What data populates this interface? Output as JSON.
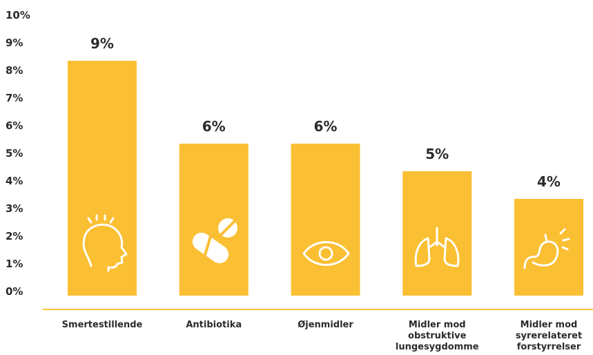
{
  "chart_data": {
    "type": "bar",
    "categories": [
      "Smertestillende",
      "Antibiotika",
      "Øjenmidler",
      "Midler mod\nobstruktive\nlungesygdomme",
      "Midler mod\nsyrerelateret\nforstyrrelser"
    ],
    "values": [
      8.5,
      5.5,
      5.5,
      4.5,
      3.5
    ],
    "value_labels": [
      "9%",
      "6%",
      "6%",
      "5%",
      "4%"
    ],
    "color": "#fbbf33",
    "ylim": [
      0,
      10
    ],
    "yticks": [
      {
        "value": 0,
        "label": "0%"
      },
      {
        "value": 1,
        "label": "1%"
      },
      {
        "value": 2,
        "label": "2%"
      },
      {
        "value": 3,
        "label": "3%"
      },
      {
        "value": 4,
        "label": "4%"
      },
      {
        "value": 5,
        "label": "5%"
      },
      {
        "value": 6,
        "label": "6%"
      },
      {
        "value": 7,
        "label": "7%"
      },
      {
        "value": 8,
        "label": "8%"
      },
      {
        "value": 9,
        "label": "9%"
      },
      {
        "value": 10,
        "label": "10%"
      }
    ],
    "grid": false
  }
}
